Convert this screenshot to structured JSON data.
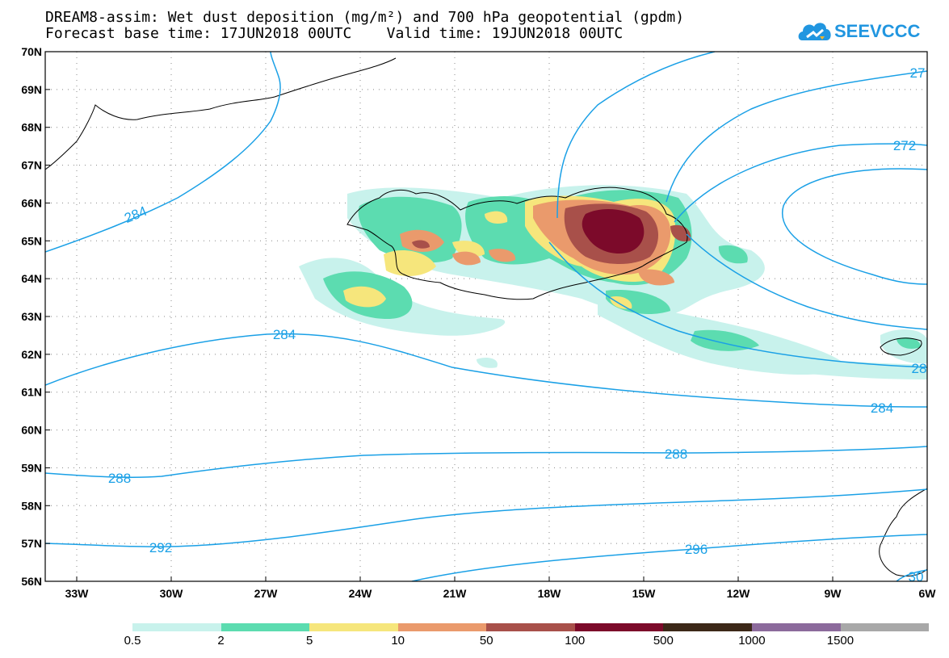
{
  "title": {
    "line1": "DREAM8-assim: Wet dust deposition (mg/m²) and 700 hPa geopotential (gpdm)",
    "line2": "Forecast base time: 17JUN2018 00UTC    Valid time: 19JUN2018 00UTC"
  },
  "logo": {
    "text": "SEEVCCC",
    "icon": "cloud-icon",
    "color": "#2196e0"
  },
  "map": {
    "region": "North Atlantic / Iceland",
    "lon_labels": [
      "33W",
      "30W",
      "27W",
      "24W",
      "21W",
      "18W",
      "15W",
      "12W",
      "9W",
      "6W"
    ],
    "lat_labels": [
      "70N",
      "69N",
      "68N",
      "67N",
      "66N",
      "65N",
      "64N",
      "63N",
      "62N",
      "61N",
      "60N",
      "59N",
      "58N",
      "57N",
      "56N"
    ],
    "lon_range": [
      -34,
      -6
    ],
    "lat_range": [
      56,
      70
    ],
    "grid": "dotted",
    "contour_labels": [
      "284",
      "272",
      "27",
      "284",
      "28",
      "284",
      "288",
      "288",
      "292",
      "296",
      "30"
    ],
    "contour_color": "#1aa0e6"
  },
  "colorbar": {
    "colors": [
      "#c8f2ec",
      "#5cdcb0",
      "#f6e67c",
      "#ea9a6c",
      "#a8504a",
      "#7c0a2a",
      "#3c2818",
      "#8c6a9c",
      "#a8a8a8"
    ],
    "labels": [
      "0.5",
      "2",
      "5",
      "10",
      "50",
      "100",
      "500",
      "1000",
      "1500"
    ]
  }
}
